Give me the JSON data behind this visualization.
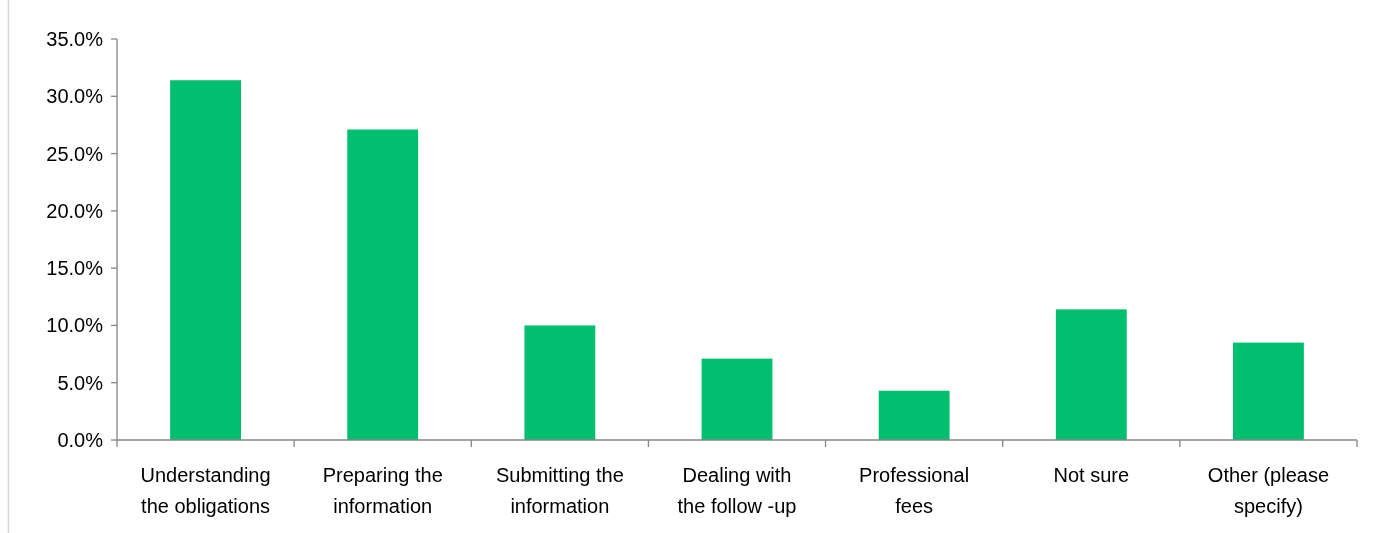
{
  "chart_data": {
    "type": "bar",
    "categories": [
      "Understanding the obligations",
      "Preparing the information",
      "Submitting the information",
      "Dealing with the follow -up",
      "Professional fees",
      "Not sure",
      "Other (please specify)"
    ],
    "values": [
      31.4,
      27.1,
      10.0,
      7.1,
      4.3,
      11.4,
      8.5
    ],
    "color": "#00bf6f",
    "ylim": [
      0,
      35
    ],
    "yticks": [
      {
        "value": 0,
        "label": "0.0%"
      },
      {
        "value": 5,
        "label": "5.0%"
      },
      {
        "value": 10,
        "label": "10.0%"
      },
      {
        "value": 15,
        "label": "15.0%"
      },
      {
        "value": 20,
        "label": "20.0%"
      },
      {
        "value": 25,
        "label": "25.0%"
      },
      {
        "value": 30,
        "label": "30.0%"
      },
      {
        "value": 35,
        "label": "35.0%"
      }
    ],
    "grid": false
  }
}
